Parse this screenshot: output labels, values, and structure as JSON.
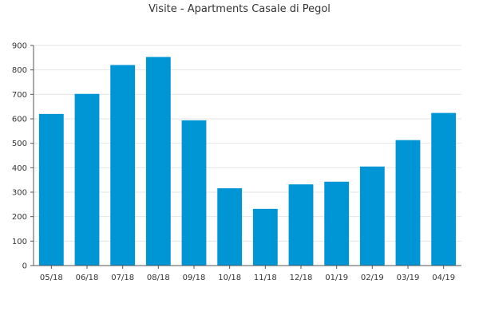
{
  "chart_data": {
    "type": "bar",
    "title": "Visite - Apartments Casale di Pegol",
    "xlabel": "",
    "ylabel": "",
    "categories": [
      "05/18",
      "06/18",
      "07/18",
      "08/18",
      "09/18",
      "10/18",
      "11/18",
      "12/18",
      "01/19",
      "02/19",
      "03/19",
      "04/19"
    ],
    "values": [
      620,
      702,
      820,
      853,
      594,
      316,
      232,
      332,
      343,
      405,
      513,
      624
    ],
    "ylim": [
      0,
      900
    ],
    "yticks": [
      0,
      100,
      200,
      300,
      400,
      500,
      600,
      700,
      800,
      900
    ],
    "grid": true,
    "bar_color": "#0096d6",
    "grid_color": "#e6e6e6",
    "axis_color": "#555555"
  }
}
